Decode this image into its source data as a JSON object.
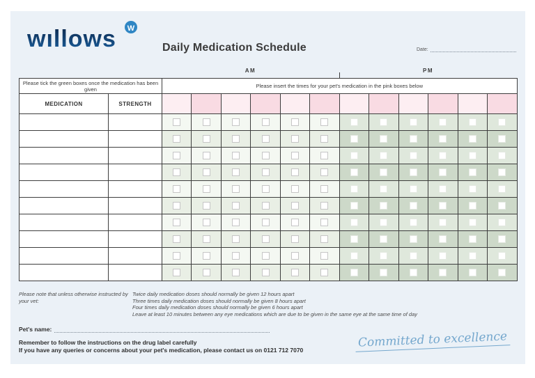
{
  "brand": {
    "logo_text": "wıllows",
    "logo_mark": "W"
  },
  "header": {
    "title": "Daily Medication Schedule",
    "date_label": "Date:"
  },
  "table": {
    "am_label": "AM",
    "pm_label": "PM",
    "instruction_left": "Please tick the green boxes once the medication has been given",
    "instruction_right": "Please insert the times for your pet's medication in the pink boxes below",
    "col_medication": "MEDICATION",
    "col_strength": "STRENGTH",
    "body_rows": 10,
    "am_columns": 6,
    "pm_columns": 6,
    "time_cell_values": [],
    "checkboxes_checked": []
  },
  "notes": {
    "prefix": "Please note that unless otherwise instructed by your vet:",
    "lines": [
      "Twice daily medication doses should normally be given 12 hours apart",
      "Three times daily medication doses should normally be given 8 hours apart",
      "Four times daily medication doses should normally be given 6 hours apart",
      "Leave at least 10 minutes between any eye medications which are due to be given in the same eye at the same time of day"
    ]
  },
  "footer": {
    "pet_name_label": "Pet's name:",
    "reminder_line1": "Remember to follow the instructions on the drug label carefully",
    "reminder_line2": "If you have any queries or concerns about your pet's medication, please contact us on 0121 712 7070",
    "tagline": "Committed to excellence"
  },
  "colors": {
    "content_background": "#ebf1f7",
    "logo_navy": "#0e2b50",
    "logo_circle_blue": "#2f86c4",
    "pink_light": "#fdeef2",
    "pink_dark": "#f9dbe3",
    "am_green_light": "#f4f8f2",
    "am_green_dark": "#e9efe5",
    "pm_green_light": "#dfe8dc",
    "pm_green_dark": "#cdd9c9",
    "grid_border": "#3d3d3d",
    "tagline_blue": "#74a7cd"
  }
}
